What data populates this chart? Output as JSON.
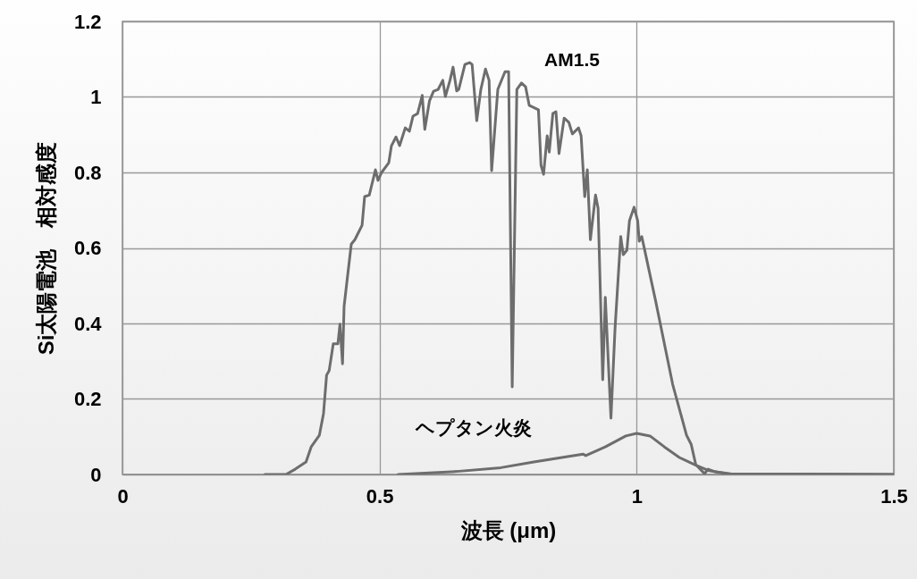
{
  "chart_data": {
    "type": "line",
    "xlabel": "波長 (μm)",
    "ylabel": "Si太陽電池　相対感度",
    "xlim": [
      0,
      1.5
    ],
    "xticks": [
      0,
      0.5,
      1,
      1.5
    ],
    "ylim": [
      0,
      1.2
    ],
    "yticks": [
      0,
      0.2,
      0.4,
      0.6,
      0.8,
      1,
      1.2
    ],
    "grid": true,
    "line_style": "solid",
    "series": [
      {
        "color": "#6d6d6d",
        "x": [
          0.277,
          0.318,
          0.336,
          0.357,
          0.367,
          0.383,
          0.391,
          0.397,
          0.402,
          0.41,
          0.419,
          0.423,
          0.428,
          0.431,
          0.445,
          0.452,
          0.466,
          0.471,
          0.48,
          0.492,
          0.497,
          0.504,
          0.518,
          0.523,
          0.532,
          0.539,
          0.55,
          0.558,
          0.565,
          0.574,
          0.583,
          0.588,
          0.597,
          0.605,
          0.614,
          0.623,
          0.628,
          0.637,
          0.643,
          0.65,
          0.654,
          0.666,
          0.675,
          0.68,
          0.689,
          0.697,
          0.706,
          0.713,
          0.718,
          0.73,
          0.744,
          0.751,
          0.758,
          0.767,
          0.776,
          0.784,
          0.791,
          0.809,
          0.814,
          0.819,
          0.826,
          0.83,
          0.837,
          0.843,
          0.849,
          0.859,
          0.868,
          0.875,
          0.887,
          0.892,
          0.899,
          0.904,
          0.91,
          0.92,
          0.925,
          0.934,
          0.939,
          0.95,
          0.958,
          0.969,
          0.974,
          0.981,
          0.986,
          0.995,
          1.002,
          1.005,
          1.01,
          1.037,
          1.07,
          1.097,
          1.106,
          1.115,
          1.132,
          1.139,
          1.153,
          1.183,
          1.5
        ],
        "values": [
          0,
          0,
          0.014,
          0.033,
          0.073,
          0.104,
          0.161,
          0.263,
          0.275,
          0.346,
          0.346,
          0.398,
          0.293,
          0.445,
          0.61,
          0.622,
          0.66,
          0.736,
          0.74,
          0.807,
          0.779,
          0.8,
          0.826,
          0.87,
          0.894,
          0.871,
          0.918,
          0.909,
          0.949,
          0.956,
          1.004,
          0.914,
          0.989,
          1.015,
          1.02,
          1.044,
          1.001,
          1.044,
          1.079,
          1.016,
          1.02,
          1.086,
          1.091,
          1.086,
          0.937,
          1.02,
          1.074,
          1.044,
          0.805,
          1.02,
          1.067,
          1.067,
          0.232,
          1.02,
          1.037,
          1.027,
          0.978,
          0.966,
          0.819,
          0.795,
          0.897,
          0.854,
          0.956,
          0.961,
          0.85,
          0.944,
          0.933,
          0.902,
          0.918,
          0.897,
          0.736,
          0.807,
          0.622,
          0.74,
          0.705,
          0.251,
          0.469,
          0.149,
          0.388,
          0.63,
          0.582,
          0.594,
          0.672,
          0.708,
          0.672,
          0.618,
          0.63,
          0.459,
          0.239,
          0.104,
          0.08,
          0.026,
          0.002,
          0.014,
          0.007,
          0.002,
          0
        ]
      },
      {
        "color": "#6d6d6d",
        "x": [
          0.536,
          0.65,
          0.736,
          0.8,
          0.896,
          0.901,
          0.939,
          0.979,
          1.0,
          1.026,
          1.054,
          1.083,
          1.113,
          1.141,
          1.176,
          1.5
        ],
        "values": [
          0,
          0.008,
          0.018,
          0.033,
          0.054,
          0.05,
          0.073,
          0.102,
          0.109,
          0.102,
          0.073,
          0.045,
          0.026,
          0.01,
          0.002,
          0
        ]
      }
    ],
    "annotations": [
      "AM1.5",
      "ヘプタン火炎"
    ]
  }
}
